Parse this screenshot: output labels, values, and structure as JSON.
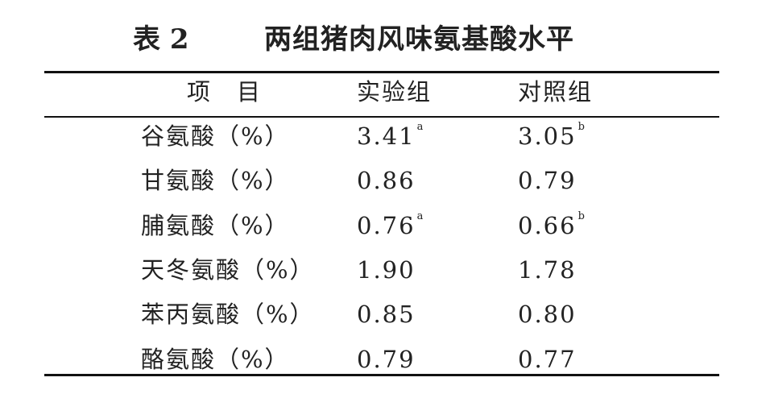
{
  "table": {
    "number": "表 2",
    "title": "两组猪肉风味氨基酸水平",
    "header": [
      "项　目",
      "实验组",
      "对照组"
    ],
    "rows": [
      [
        {
          "text": "谷氨酸（%）"
        },
        {
          "text": "3.41",
          "sup": "a"
        },
        {
          "text": "3.05",
          "sup": "b"
        }
      ],
      [
        {
          "text": "甘氨酸（%）"
        },
        {
          "text": "0.86"
        },
        {
          "text": "0.79"
        }
      ],
      [
        {
          "text": "脯氨酸（%）"
        },
        {
          "text": "0.76",
          "sup": "a"
        },
        {
          "text": "0.66",
          "sup": "b"
        }
      ],
      [
        {
          "text": "天冬氨酸（%）"
        },
        {
          "text": "1.90"
        },
        {
          "text": "1.78"
        }
      ],
      [
        {
          "text": "苯丙氨酸（%）"
        },
        {
          "text": "0.85"
        },
        {
          "text": "0.80"
        }
      ],
      [
        {
          "text": "酪氨酸（%）"
        },
        {
          "text": "0.79"
        },
        {
          "text": "0.77"
        }
      ]
    ]
  }
}
